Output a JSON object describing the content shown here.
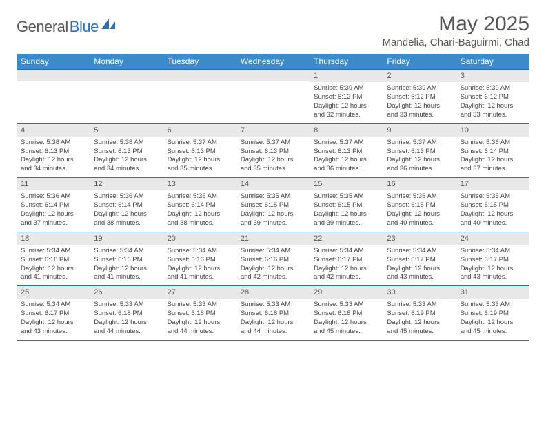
{
  "logo": {
    "text1": "General",
    "text2": "Blue"
  },
  "title": "May 2025",
  "location": "Mandelia, Chari-Baguirmi, Chad",
  "colors": {
    "header_bg": "#3b8bc9",
    "rule": "#2d6fb7",
    "daynum_bg": "#e8e8e8",
    "logo_gray": "#58595b",
    "logo_blue": "#2d6fb7"
  },
  "weekdays": [
    "Sunday",
    "Monday",
    "Tuesday",
    "Wednesday",
    "Thursday",
    "Friday",
    "Saturday"
  ],
  "weeks": [
    [
      {
        "n": "",
        "sunrise": "",
        "sunset": "",
        "daylight": ""
      },
      {
        "n": "",
        "sunrise": "",
        "sunset": "",
        "daylight": ""
      },
      {
        "n": "",
        "sunrise": "",
        "sunset": "",
        "daylight": ""
      },
      {
        "n": "",
        "sunrise": "",
        "sunset": "",
        "daylight": ""
      },
      {
        "n": "1",
        "sunrise": "Sunrise: 5:39 AM",
        "sunset": "Sunset: 6:12 PM",
        "daylight": "Daylight: 12 hours and 32 minutes."
      },
      {
        "n": "2",
        "sunrise": "Sunrise: 5:39 AM",
        "sunset": "Sunset: 6:12 PM",
        "daylight": "Daylight: 12 hours and 33 minutes."
      },
      {
        "n": "3",
        "sunrise": "Sunrise: 5:39 AM",
        "sunset": "Sunset: 6:12 PM",
        "daylight": "Daylight: 12 hours and 33 minutes."
      }
    ],
    [
      {
        "n": "4",
        "sunrise": "Sunrise: 5:38 AM",
        "sunset": "Sunset: 6:13 PM",
        "daylight": "Daylight: 12 hours and 34 minutes."
      },
      {
        "n": "5",
        "sunrise": "Sunrise: 5:38 AM",
        "sunset": "Sunset: 6:13 PM",
        "daylight": "Daylight: 12 hours and 34 minutes."
      },
      {
        "n": "6",
        "sunrise": "Sunrise: 5:37 AM",
        "sunset": "Sunset: 6:13 PM",
        "daylight": "Daylight: 12 hours and 35 minutes."
      },
      {
        "n": "7",
        "sunrise": "Sunrise: 5:37 AM",
        "sunset": "Sunset: 6:13 PM",
        "daylight": "Daylight: 12 hours and 35 minutes."
      },
      {
        "n": "8",
        "sunrise": "Sunrise: 5:37 AM",
        "sunset": "Sunset: 6:13 PM",
        "daylight": "Daylight: 12 hours and 36 minutes."
      },
      {
        "n": "9",
        "sunrise": "Sunrise: 5:37 AM",
        "sunset": "Sunset: 6:13 PM",
        "daylight": "Daylight: 12 hours and 36 minutes."
      },
      {
        "n": "10",
        "sunrise": "Sunrise: 5:36 AM",
        "sunset": "Sunset: 6:14 PM",
        "daylight": "Daylight: 12 hours and 37 minutes."
      }
    ],
    [
      {
        "n": "11",
        "sunrise": "Sunrise: 5:36 AM",
        "sunset": "Sunset: 6:14 PM",
        "daylight": "Daylight: 12 hours and 37 minutes."
      },
      {
        "n": "12",
        "sunrise": "Sunrise: 5:36 AM",
        "sunset": "Sunset: 6:14 PM",
        "daylight": "Daylight: 12 hours and 38 minutes."
      },
      {
        "n": "13",
        "sunrise": "Sunrise: 5:35 AM",
        "sunset": "Sunset: 6:14 PM",
        "daylight": "Daylight: 12 hours and 38 minutes."
      },
      {
        "n": "14",
        "sunrise": "Sunrise: 5:35 AM",
        "sunset": "Sunset: 6:15 PM",
        "daylight": "Daylight: 12 hours and 39 minutes."
      },
      {
        "n": "15",
        "sunrise": "Sunrise: 5:35 AM",
        "sunset": "Sunset: 6:15 PM",
        "daylight": "Daylight: 12 hours and 39 minutes."
      },
      {
        "n": "16",
        "sunrise": "Sunrise: 5:35 AM",
        "sunset": "Sunset: 6:15 PM",
        "daylight": "Daylight: 12 hours and 40 minutes."
      },
      {
        "n": "17",
        "sunrise": "Sunrise: 5:35 AM",
        "sunset": "Sunset: 6:15 PM",
        "daylight": "Daylight: 12 hours and 40 minutes."
      }
    ],
    [
      {
        "n": "18",
        "sunrise": "Sunrise: 5:34 AM",
        "sunset": "Sunset: 6:16 PM",
        "daylight": "Daylight: 12 hours and 41 minutes."
      },
      {
        "n": "19",
        "sunrise": "Sunrise: 5:34 AM",
        "sunset": "Sunset: 6:16 PM",
        "daylight": "Daylight: 12 hours and 41 minutes."
      },
      {
        "n": "20",
        "sunrise": "Sunrise: 5:34 AM",
        "sunset": "Sunset: 6:16 PM",
        "daylight": "Daylight: 12 hours and 41 minutes."
      },
      {
        "n": "21",
        "sunrise": "Sunrise: 5:34 AM",
        "sunset": "Sunset: 6:16 PM",
        "daylight": "Daylight: 12 hours and 42 minutes."
      },
      {
        "n": "22",
        "sunrise": "Sunrise: 5:34 AM",
        "sunset": "Sunset: 6:17 PM",
        "daylight": "Daylight: 12 hours and 42 minutes."
      },
      {
        "n": "23",
        "sunrise": "Sunrise: 5:34 AM",
        "sunset": "Sunset: 6:17 PM",
        "daylight": "Daylight: 12 hours and 43 minutes."
      },
      {
        "n": "24",
        "sunrise": "Sunrise: 5:34 AM",
        "sunset": "Sunset: 6:17 PM",
        "daylight": "Daylight: 12 hours and 43 minutes."
      }
    ],
    [
      {
        "n": "25",
        "sunrise": "Sunrise: 5:34 AM",
        "sunset": "Sunset: 6:17 PM",
        "daylight": "Daylight: 12 hours and 43 minutes."
      },
      {
        "n": "26",
        "sunrise": "Sunrise: 5:33 AM",
        "sunset": "Sunset: 6:18 PM",
        "daylight": "Daylight: 12 hours and 44 minutes."
      },
      {
        "n": "27",
        "sunrise": "Sunrise: 5:33 AM",
        "sunset": "Sunset: 6:18 PM",
        "daylight": "Daylight: 12 hours and 44 minutes."
      },
      {
        "n": "28",
        "sunrise": "Sunrise: 5:33 AM",
        "sunset": "Sunset: 6:18 PM",
        "daylight": "Daylight: 12 hours and 44 minutes."
      },
      {
        "n": "29",
        "sunrise": "Sunrise: 5:33 AM",
        "sunset": "Sunset: 6:18 PM",
        "daylight": "Daylight: 12 hours and 45 minutes."
      },
      {
        "n": "30",
        "sunrise": "Sunrise: 5:33 AM",
        "sunset": "Sunset: 6:19 PM",
        "daylight": "Daylight: 12 hours and 45 minutes."
      },
      {
        "n": "31",
        "sunrise": "Sunrise: 5:33 AM",
        "sunset": "Sunset: 6:19 PM",
        "daylight": "Daylight: 12 hours and 45 minutes."
      }
    ]
  ]
}
